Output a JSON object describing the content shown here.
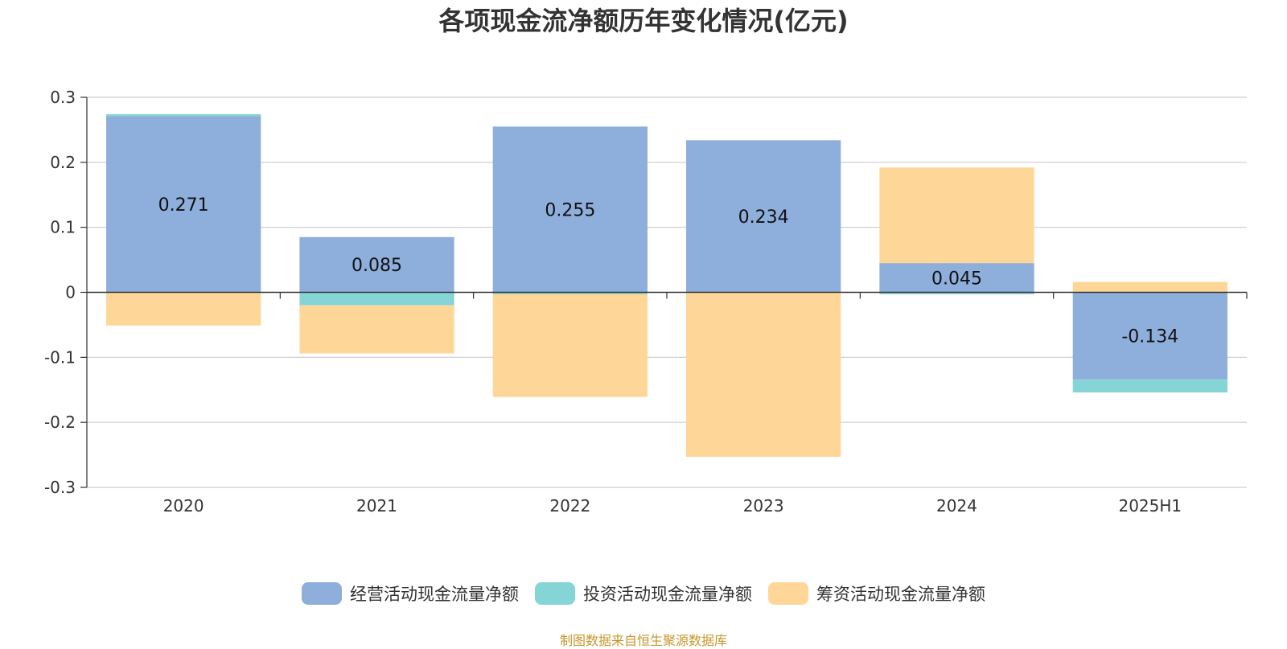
{
  "chart_data": {
    "type": "bar",
    "stacked": true,
    "title": "各项现金流净额历年变化情况(亿元)",
    "categories": [
      "2020",
      "2021",
      "2022",
      "2023",
      "2024",
      "2025H1"
    ],
    "series": [
      {
        "name": "经营活动现金流量净额",
        "color": "#8eaedb",
        "values": [
          0.271,
          0.085,
          0.255,
          0.234,
          0.045,
          -0.134
        ],
        "value_labels": [
          "0.271",
          "0.085",
          "0.255",
          "0.234",
          "0.045",
          "-0.134"
        ]
      },
      {
        "name": "投资活动现金流量净额",
        "color": "#86d5d6",
        "values": [
          0.003,
          -0.02,
          -0.003,
          0.0,
          -0.003,
          -0.02
        ]
      },
      {
        "name": "筹资活动现金流量净额",
        "color": "#fed798",
        "values": [
          -0.051,
          -0.074,
          -0.158,
          -0.253,
          0.147,
          0.016
        ]
      }
    ],
    "ylim": [
      -0.3,
      0.3
    ],
    "yticks": [
      0.3,
      0.2,
      0.1,
      0,
      -0.1,
      -0.2,
      -0.3
    ],
    "ytick_labels": [
      "0.3",
      "0.2",
      "0.1",
      "0",
      "-0.1",
      "-0.2",
      "-0.3"
    ],
    "grid": true,
    "legend_position": "bottom-center",
    "source_note": "制图数据来自恒生聚源数据库"
  }
}
